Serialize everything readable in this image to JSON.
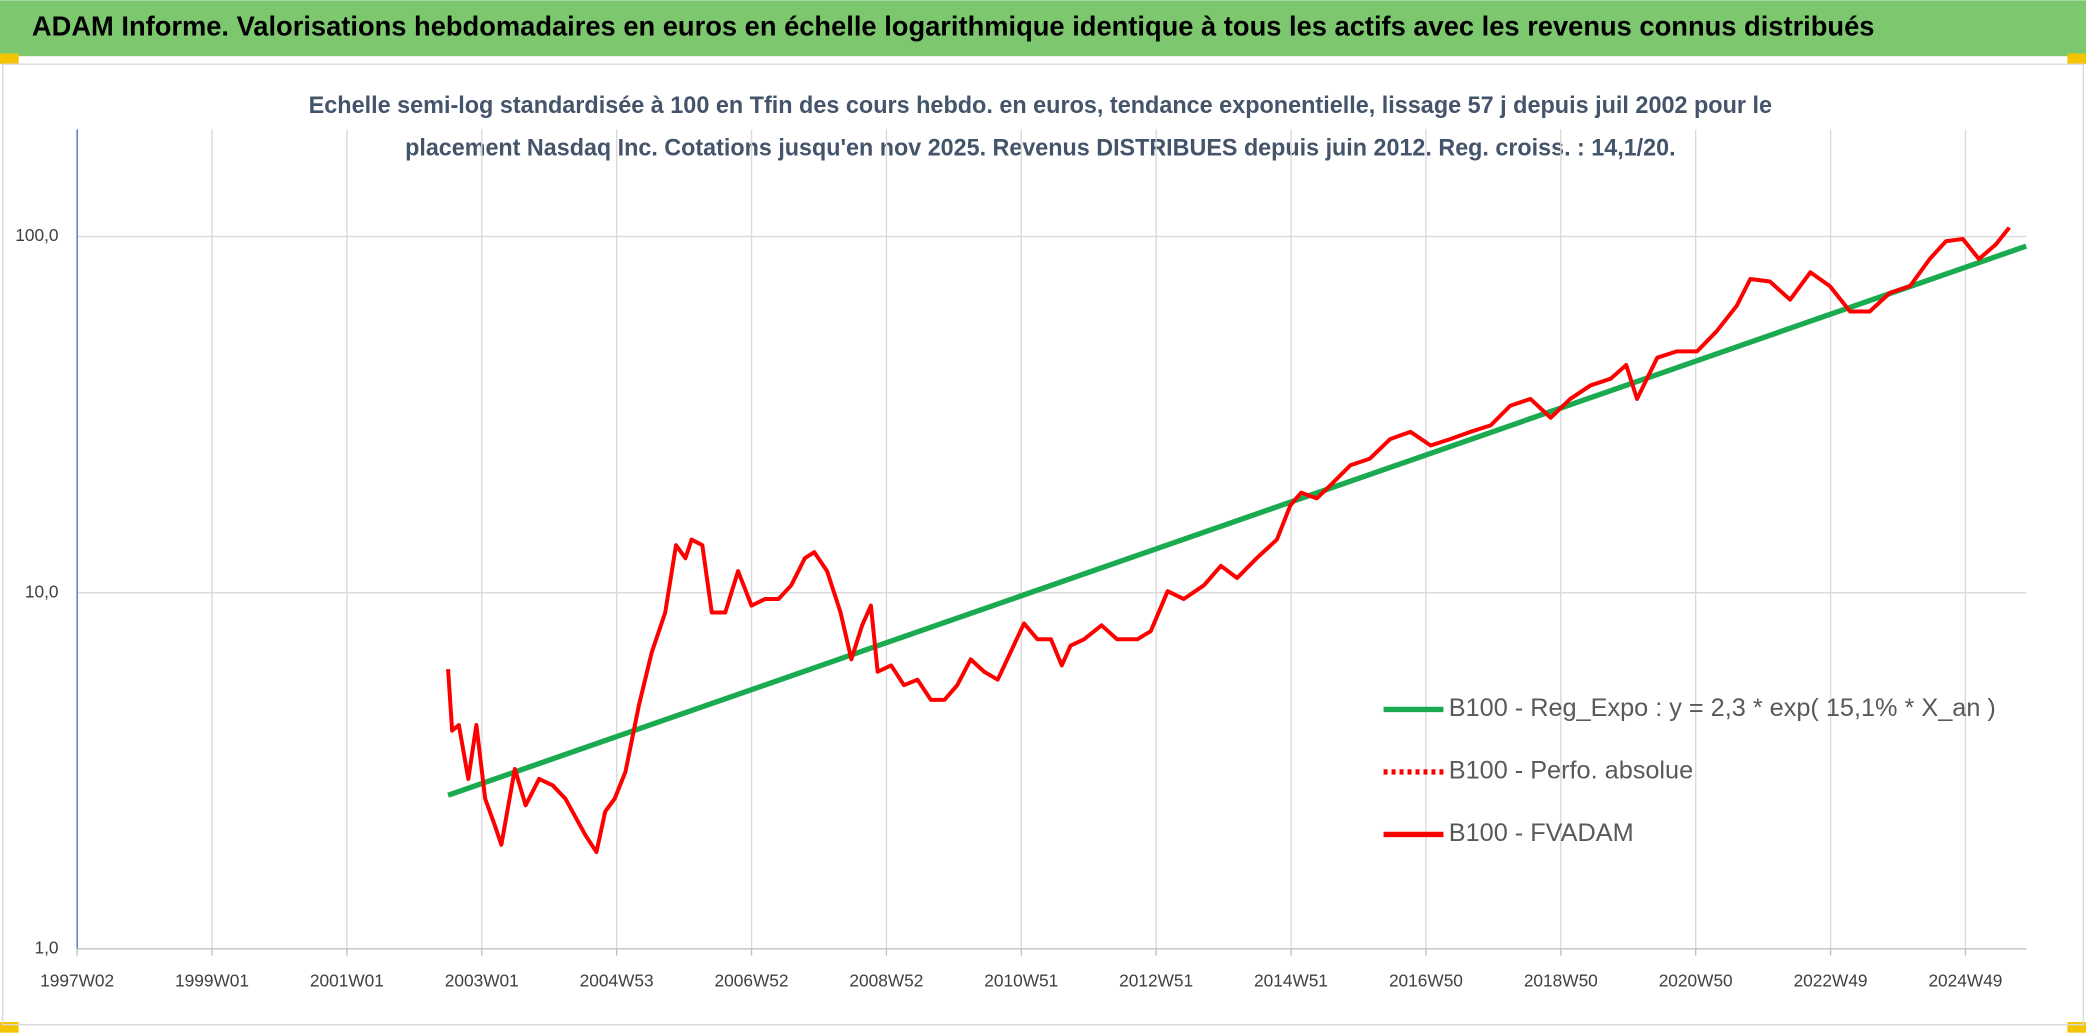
{
  "header": {
    "title": "ADAM Informe. Valorisations hebdomadaires en euros en échelle logarithmique identique à tous les actifs avec les revenus connus distribués"
  },
  "chart_data": {
    "type": "line",
    "subtitle": [
      "Echelle semi-log standardisée à 100 en Tfin des cours hebdo. en euros, tendance exponentielle, lissage 57 j depuis juil 2002 pour le",
      "placement Nasdaq Inc. Cotations jusqu'en nov 2025. Revenus DISTRIBUES depuis juin 2012. Reg. croiss. : 14,1/20."
    ],
    "ylog": true,
    "grid": true,
    "legend": "right",
    "ylim": [
      1,
      200
    ],
    "yticks": [
      {
        "value": 1,
        "label": "1,0"
      },
      {
        "value": 10,
        "label": "10,0"
      },
      {
        "value": 100,
        "label": "100,0"
      }
    ],
    "xlim": [
      1997.0,
      2025.9
    ],
    "xticks": [
      {
        "value": 1997.0,
        "label": "1997W02"
      },
      {
        "value": 1999.0,
        "label": "1999W01"
      },
      {
        "value": 2001.0,
        "label": "2001W01"
      },
      {
        "value": 2003.0,
        "label": "2003W01"
      },
      {
        "value": 2005.0,
        "label": "2004W53"
      },
      {
        "value": 2007.0,
        "label": "2006W52"
      },
      {
        "value": 2009.0,
        "label": "2008W52"
      },
      {
        "value": 2011.0,
        "label": "2010W51"
      },
      {
        "value": 2013.0,
        "label": "2012W51"
      },
      {
        "value": 2015.0,
        "label": "2014W51"
      },
      {
        "value": 2017.0,
        "label": "2016W50"
      },
      {
        "value": 2019.0,
        "label": "2018W50"
      },
      {
        "value": 2021.0,
        "label": "2020W50"
      },
      {
        "value": 2023.0,
        "label": "2022W49"
      },
      {
        "value": 2025.0,
        "label": "2024W49"
      }
    ],
    "series": [
      {
        "name": "B100 - Reg_Expo : y = 2,3 * exp( 15,1% *  X_an )",
        "color": "#1aaa50",
        "style": "solid",
        "x": [
          2002.5,
          2025.9
        ],
        "values": [
          2.7,
          94
        ]
      },
      {
        "name": "B100 - Perfo. absolue",
        "color": "#ff0000",
        "style": "dotted",
        "x": [],
        "values": []
      },
      {
        "name": "B100 - FVADAM",
        "color": "#ff0000",
        "style": "solid",
        "x": [
          2002.5,
          2002.56,
          2002.66,
          2002.8,
          2002.92,
          2003.05,
          2003.19,
          2003.29,
          2003.49,
          2003.65,
          2003.85,
          2004.05,
          2004.24,
          2004.54,
          2004.7,
          2004.83,
          2004.97,
          2005.13,
          2005.33,
          2005.52,
          2005.72,
          2005.88,
          2006.02,
          2006.11,
          2006.27,
          2006.41,
          2006.61,
          2006.8,
          2007.0,
          2007.2,
          2007.4,
          2007.59,
          2007.79,
          2007.93,
          2008.12,
          2008.32,
          2008.48,
          2008.64,
          2008.77,
          2008.87,
          2009.07,
          2009.26,
          2009.46,
          2009.66,
          2009.86,
          2010.05,
          2010.25,
          2010.45,
          2010.65,
          2010.84,
          2011.04,
          2011.24,
          2011.44,
          2011.6,
          2011.73,
          2011.93,
          2012.19,
          2012.42,
          2012.72,
          2012.92,
          2013.17,
          2013.41,
          2013.71,
          2013.96,
          2014.2,
          2014.49,
          2014.79,
          2014.99,
          2015.15,
          2015.38,
          2015.58,
          2015.88,
          2016.17,
          2016.47,
          2016.77,
          2017.07,
          2017.36,
          2017.66,
          2017.96,
          2018.25,
          2018.55,
          2018.85,
          2019.14,
          2019.44,
          2019.74,
          2019.97,
          2020.13,
          2020.43,
          2020.72,
          2021.02,
          2021.31,
          2021.61,
          2021.81,
          2022.1,
          2022.4,
          2022.7,
          2022.99,
          2023.29,
          2023.58,
          2023.88,
          2024.18,
          2024.47,
          2024.71,
          2024.96,
          2025.2,
          2025.45,
          2025.65
        ],
        "values": [
          6.1,
          4.1,
          4.25,
          3.0,
          4.25,
          2.64,
          2.23,
          1.96,
          3.2,
          2.53,
          3.0,
          2.88,
          2.64,
          2.08,
          1.87,
          2.43,
          2.64,
          3.14,
          4.83,
          6.8,
          8.8,
          13.6,
          12.5,
          14.1,
          13.6,
          8.8,
          8.8,
          11.5,
          9.2,
          9.6,
          9.6,
          10.5,
          12.5,
          13.0,
          11.5,
          8.8,
          6.5,
          8.1,
          9.2,
          6.0,
          6.25,
          5.5,
          5.7,
          5.0,
          5.0,
          5.5,
          6.5,
          6.0,
          5.7,
          6.8,
          8.2,
          7.4,
          7.4,
          6.25,
          7.1,
          7.4,
          8.1,
          7.4,
          7.4,
          7.8,
          10.1,
          9.6,
          10.5,
          11.9,
          11.0,
          12.5,
          14.1,
          17.6,
          19.1,
          18.4,
          20.0,
          22.8,
          23.8,
          27.0,
          28.3,
          25.9,
          27.0,
          28.3,
          29.5,
          33.5,
          35.0,
          31.0,
          35.0,
          38.2,
          39.9,
          43.6,
          35.0,
          45.7,
          47.6,
          47.6,
          54.2,
          64.0,
          76.0,
          74.8,
          66.5,
          79.4,
          72.6,
          61.6,
          61.6,
          69.5,
          72.6,
          86.5,
          97,
          98.5,
          86.5,
          95,
          106
        ]
      }
    ]
  }
}
